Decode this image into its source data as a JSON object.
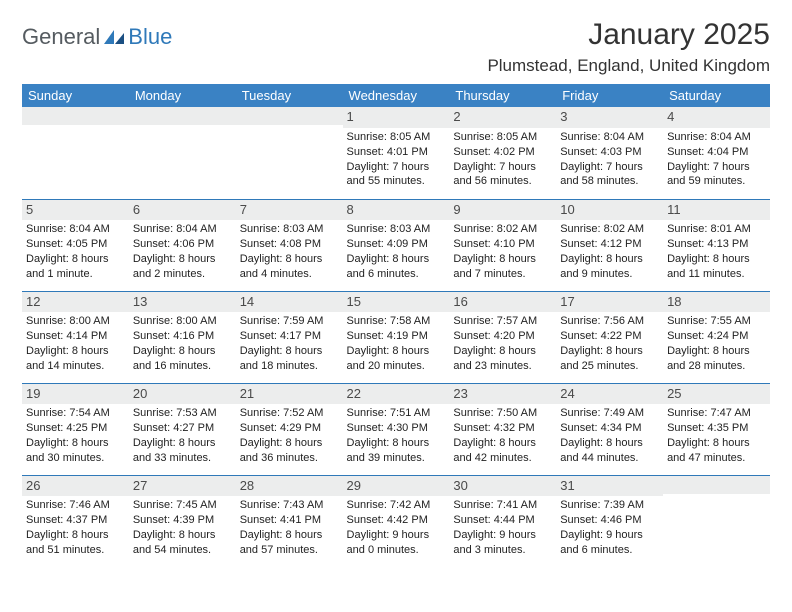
{
  "logo": {
    "text1": "General",
    "text2": "Blue"
  },
  "title": "January 2025",
  "location": "Plumstead, England, United Kingdom",
  "colors": {
    "header_bg": "#3a82c4",
    "header_fg": "#ffffff",
    "daynum_bg": "#eceded",
    "rule": "#2f79b9",
    "logo_gray": "#555b60",
    "logo_blue": "#2f79b9"
  },
  "day_names": [
    "Sunday",
    "Monday",
    "Tuesday",
    "Wednesday",
    "Thursday",
    "Friday",
    "Saturday"
  ],
  "weeks": [
    [
      {
        "n": "",
        "lines": [
          "",
          "",
          "",
          ""
        ]
      },
      {
        "n": "",
        "lines": [
          "",
          "",
          "",
          ""
        ]
      },
      {
        "n": "",
        "lines": [
          "",
          "",
          "",
          ""
        ]
      },
      {
        "n": "1",
        "lines": [
          "Sunrise: 8:05 AM",
          "Sunset: 4:01 PM",
          "Daylight: 7 hours",
          "and 55 minutes."
        ]
      },
      {
        "n": "2",
        "lines": [
          "Sunrise: 8:05 AM",
          "Sunset: 4:02 PM",
          "Daylight: 7 hours",
          "and 56 minutes."
        ]
      },
      {
        "n": "3",
        "lines": [
          "Sunrise: 8:04 AM",
          "Sunset: 4:03 PM",
          "Daylight: 7 hours",
          "and 58 minutes."
        ]
      },
      {
        "n": "4",
        "lines": [
          "Sunrise: 8:04 AM",
          "Sunset: 4:04 PM",
          "Daylight: 7 hours",
          "and 59 minutes."
        ]
      }
    ],
    [
      {
        "n": "5",
        "lines": [
          "Sunrise: 8:04 AM",
          "Sunset: 4:05 PM",
          "Daylight: 8 hours",
          "and 1 minute."
        ]
      },
      {
        "n": "6",
        "lines": [
          "Sunrise: 8:04 AM",
          "Sunset: 4:06 PM",
          "Daylight: 8 hours",
          "and 2 minutes."
        ]
      },
      {
        "n": "7",
        "lines": [
          "Sunrise: 8:03 AM",
          "Sunset: 4:08 PM",
          "Daylight: 8 hours",
          "and 4 minutes."
        ]
      },
      {
        "n": "8",
        "lines": [
          "Sunrise: 8:03 AM",
          "Sunset: 4:09 PM",
          "Daylight: 8 hours",
          "and 6 minutes."
        ]
      },
      {
        "n": "9",
        "lines": [
          "Sunrise: 8:02 AM",
          "Sunset: 4:10 PM",
          "Daylight: 8 hours",
          "and 7 minutes."
        ]
      },
      {
        "n": "10",
        "lines": [
          "Sunrise: 8:02 AM",
          "Sunset: 4:12 PM",
          "Daylight: 8 hours",
          "and 9 minutes."
        ]
      },
      {
        "n": "11",
        "lines": [
          "Sunrise: 8:01 AM",
          "Sunset: 4:13 PM",
          "Daylight: 8 hours",
          "and 11 minutes."
        ]
      }
    ],
    [
      {
        "n": "12",
        "lines": [
          "Sunrise: 8:00 AM",
          "Sunset: 4:14 PM",
          "Daylight: 8 hours",
          "and 14 minutes."
        ]
      },
      {
        "n": "13",
        "lines": [
          "Sunrise: 8:00 AM",
          "Sunset: 4:16 PM",
          "Daylight: 8 hours",
          "and 16 minutes."
        ]
      },
      {
        "n": "14",
        "lines": [
          "Sunrise: 7:59 AM",
          "Sunset: 4:17 PM",
          "Daylight: 8 hours",
          "and 18 minutes."
        ]
      },
      {
        "n": "15",
        "lines": [
          "Sunrise: 7:58 AM",
          "Sunset: 4:19 PM",
          "Daylight: 8 hours",
          "and 20 minutes."
        ]
      },
      {
        "n": "16",
        "lines": [
          "Sunrise: 7:57 AM",
          "Sunset: 4:20 PM",
          "Daylight: 8 hours",
          "and 23 minutes."
        ]
      },
      {
        "n": "17",
        "lines": [
          "Sunrise: 7:56 AM",
          "Sunset: 4:22 PM",
          "Daylight: 8 hours",
          "and 25 minutes."
        ]
      },
      {
        "n": "18",
        "lines": [
          "Sunrise: 7:55 AM",
          "Sunset: 4:24 PM",
          "Daylight: 8 hours",
          "and 28 minutes."
        ]
      }
    ],
    [
      {
        "n": "19",
        "lines": [
          "Sunrise: 7:54 AM",
          "Sunset: 4:25 PM",
          "Daylight: 8 hours",
          "and 30 minutes."
        ]
      },
      {
        "n": "20",
        "lines": [
          "Sunrise: 7:53 AM",
          "Sunset: 4:27 PM",
          "Daylight: 8 hours",
          "and 33 minutes."
        ]
      },
      {
        "n": "21",
        "lines": [
          "Sunrise: 7:52 AM",
          "Sunset: 4:29 PM",
          "Daylight: 8 hours",
          "and 36 minutes."
        ]
      },
      {
        "n": "22",
        "lines": [
          "Sunrise: 7:51 AM",
          "Sunset: 4:30 PM",
          "Daylight: 8 hours",
          "and 39 minutes."
        ]
      },
      {
        "n": "23",
        "lines": [
          "Sunrise: 7:50 AM",
          "Sunset: 4:32 PM",
          "Daylight: 8 hours",
          "and 42 minutes."
        ]
      },
      {
        "n": "24",
        "lines": [
          "Sunrise: 7:49 AM",
          "Sunset: 4:34 PM",
          "Daylight: 8 hours",
          "and 44 minutes."
        ]
      },
      {
        "n": "25",
        "lines": [
          "Sunrise: 7:47 AM",
          "Sunset: 4:35 PM",
          "Daylight: 8 hours",
          "and 47 minutes."
        ]
      }
    ],
    [
      {
        "n": "26",
        "lines": [
          "Sunrise: 7:46 AM",
          "Sunset: 4:37 PM",
          "Daylight: 8 hours",
          "and 51 minutes."
        ]
      },
      {
        "n": "27",
        "lines": [
          "Sunrise: 7:45 AM",
          "Sunset: 4:39 PM",
          "Daylight: 8 hours",
          "and 54 minutes."
        ]
      },
      {
        "n": "28",
        "lines": [
          "Sunrise: 7:43 AM",
          "Sunset: 4:41 PM",
          "Daylight: 8 hours",
          "and 57 minutes."
        ]
      },
      {
        "n": "29",
        "lines": [
          "Sunrise: 7:42 AM",
          "Sunset: 4:42 PM",
          "Daylight: 9 hours",
          "and 0 minutes."
        ]
      },
      {
        "n": "30",
        "lines": [
          "Sunrise: 7:41 AM",
          "Sunset: 4:44 PM",
          "Daylight: 9 hours",
          "and 3 minutes."
        ]
      },
      {
        "n": "31",
        "lines": [
          "Sunrise: 7:39 AM",
          "Sunset: 4:46 PM",
          "Daylight: 9 hours",
          "and 6 minutes."
        ]
      },
      {
        "n": "",
        "lines": [
          "",
          "",
          "",
          ""
        ]
      }
    ]
  ]
}
